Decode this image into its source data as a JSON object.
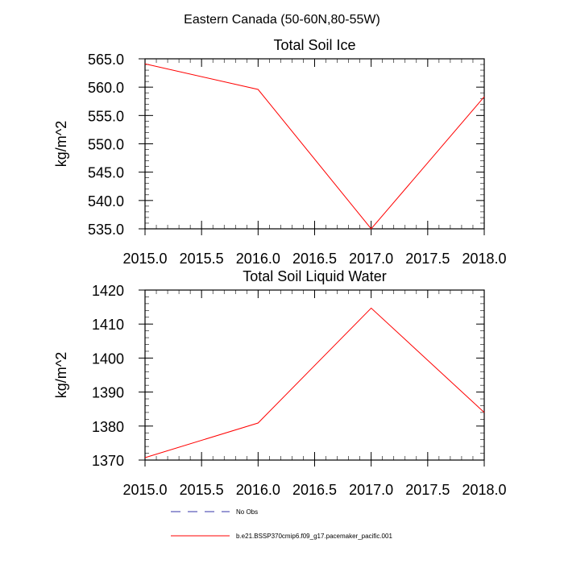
{
  "figure": {
    "title": "Eastern Canada (50-60N,80-55W)"
  },
  "chart_data": [
    {
      "type": "line",
      "title": "Total Soil Ice",
      "xlabel": "",
      "ylabel": "kg/m^2",
      "xlim": [
        2015.0,
        2018.0
      ],
      "ylim": [
        535.0,
        565.0
      ],
      "xticks": [
        "2015.0",
        "2015.5",
        "2016.0",
        "2016.5",
        "2017.0",
        "2017.5",
        "2018.0"
      ],
      "yticks": [
        "535.0",
        "540.0",
        "545.0",
        "550.0",
        "555.0",
        "560.0",
        "565.0"
      ],
      "x": [
        2015,
        2016,
        2017,
        2018
      ],
      "series": [
        {
          "name": "b.e21.BSSP370cmip6.f09_g17.pacemaker_pacific.001",
          "color": "#ff0000",
          "values": [
            564.1,
            559.6,
            535.0,
            558.3
          ]
        }
      ]
    },
    {
      "type": "line",
      "title": "Total Soil Liquid Water",
      "xlabel": "",
      "ylabel": "kg/m^2",
      "xlim": [
        2015.0,
        2018.0
      ],
      "ylim": [
        1370,
        1420
      ],
      "xticks": [
        "2015.0",
        "2015.5",
        "2016.0",
        "2016.5",
        "2017.0",
        "2017.5",
        "2018.0"
      ],
      "yticks": [
        "1370",
        "1380",
        "1390",
        "1400",
        "1410",
        "1420"
      ],
      "x": [
        2015,
        2016,
        2017,
        2018
      ],
      "series": [
        {
          "name": "b.e21.BSSP370cmip6.f09_g17.pacemaker_pacific.001",
          "color": "#ff0000",
          "values": [
            1370.7,
            1380.9,
            1414.7,
            1384.0
          ]
        }
      ]
    }
  ],
  "legend": {
    "placement": "bottom",
    "items": [
      {
        "label": "No Obs",
        "color": "#3333aa",
        "style": "dashed"
      },
      {
        "label": "b.e21.BSSP370cmip6.f09_g17.pacemaker_pacific.001",
        "color": "#ff0000",
        "style": "solid"
      }
    ]
  }
}
